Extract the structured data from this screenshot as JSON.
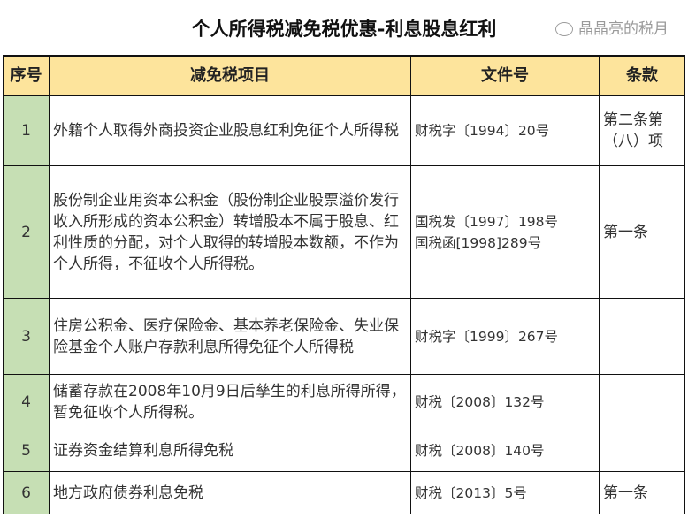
{
  "title": "个人所得税减免税优惠-利息股息红利",
  "headers": [
    "序号",
    "减免税项目",
    "文件号",
    "条款"
  ],
  "rows": [
    {
      "seq": "1",
      "item": "外籍个人取得外商投资企业股息红利免征个人所得税",
      "doc": "财税字〔1994〕20号",
      "clause": "第二条第（八）项"
    },
    {
      "seq": "2",
      "item": "股份制企业用资本公积金（股份制企业股票溢价发行收入所形成的资本公积金）转增股本不属于股息、红利性质的分配，对个人取得的转增股本数额，不作为个人所得，不征收个人所得税。",
      "doc": "国税发〔1997〕198号",
      "doc2": "国税函[1998]289号",
      "clause": "第一条"
    },
    {
      "seq": "3",
      "item": "住房公积金、医疗保险金、基本养老保险金、失业保险基金个人账户存款利息所得免征个人所得税",
      "doc": "财税字〔1999〕267号",
      "clause": ""
    },
    {
      "seq": "4",
      "item": "储蓄存款在2008年10月9日后孳生的利息所得所得，暂免征收个人所得税。",
      "doc": "财税〔2008〕132号",
      "clause": ""
    },
    {
      "seq": "5",
      "item": "证券资金结算利息所得免税",
      "doc": "财税〔2008〕140号",
      "clause": ""
    },
    {
      "seq": "6",
      "item": "地方政府债券利息免税",
      "doc": "财税〔2013〕5号",
      "clause": "第一条"
    }
  ],
  "watermark": "晶晶亮的税月",
  "colors": {
    "header": "#fde49c",
    "seq": "#c6dfb4"
  }
}
